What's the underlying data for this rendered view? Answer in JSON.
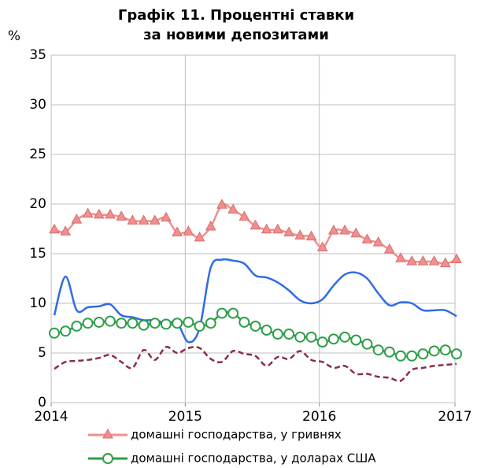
{
  "chart_data": {
    "type": "line",
    "title": [
      "Графік 11. Процентні ставки",
      "за новими депозитами"
    ],
    "y_label": "%",
    "categories": [
      "2014",
      null,
      null,
      null,
      null,
      null,
      null,
      null,
      null,
      null,
      null,
      null,
      "2015",
      null,
      null,
      null,
      null,
      null,
      null,
      null,
      null,
      null,
      null,
      null,
      "2016",
      null,
      null,
      null,
      null,
      null,
      null,
      null,
      null,
      null,
      null,
      null,
      "2017"
    ],
    "ylim": [
      0,
      35
    ],
    "yticks": [
      0,
      5,
      10,
      15,
      20,
      25,
      30,
      35
    ],
    "grid": true,
    "series": [
      {
        "name": "домашні господарства, у гривнях",
        "color": "#f08f8f",
        "marker": "triangle",
        "values": [
          17.4,
          17.2,
          18.4,
          19.0,
          18.9,
          18.9,
          18.7,
          18.3,
          18.3,
          18.3,
          18.6,
          17.1,
          17.2,
          16.6,
          17.7,
          19.9,
          19.4,
          18.7,
          17.8,
          17.4,
          17.4,
          17.1,
          16.8,
          16.7,
          15.6,
          17.3,
          17.3,
          17.0,
          16.4,
          16.1,
          15.4,
          14.5,
          14.2,
          14.2,
          14.2,
          14.0,
          14.4
        ]
      },
      {
        "name": "домашні господарства, у доларах США",
        "color": "#2e9e48",
        "marker": "circle",
        "values": [
          7.0,
          7.2,
          7.7,
          8.0,
          8.1,
          8.2,
          8.0,
          8.0,
          7.8,
          8.0,
          7.9,
          8.0,
          8.1,
          7.7,
          8.0,
          9.0,
          9.0,
          8.1,
          7.7,
          7.3,
          6.9,
          6.9,
          6.6,
          6.6,
          6.1,
          6.4,
          6.6,
          6.3,
          5.9,
          5.3,
          5.1,
          4.7,
          4.7,
          4.9,
          5.2,
          5.3,
          4.9
        ]
      },
      {
        "color": "#2f6be8",
        "values": [
          8.8,
          12.7,
          9.3,
          9.6,
          9.7,
          9.9,
          8.8,
          8.6,
          8.3,
          8.3,
          8.0,
          8.0,
          6.1,
          7.5,
          13.6,
          14.4,
          14.3,
          14.0,
          12.8,
          12.6,
          12.1,
          11.3,
          10.3,
          10.0,
          10.4,
          11.8,
          12.9,
          13.1,
          12.5,
          11.0,
          9.8,
          10.1,
          10.0,
          9.3,
          9.3,
          9.3,
          8.7
        ]
      },
      {
        "color": "#8b2a52",
        "dashed": true,
        "values": [
          3.4,
          4.1,
          4.2,
          4.3,
          4.5,
          4.8,
          4.1,
          3.5,
          5.3,
          4.3,
          5.6,
          5.0,
          5.5,
          5.5,
          4.4,
          4.1,
          5.2,
          4.9,
          4.7,
          3.7,
          4.6,
          4.4,
          5.2,
          4.3,
          4.1,
          3.5,
          3.7,
          2.9,
          2.9,
          2.6,
          2.5,
          2.2,
          3.3,
          3.5,
          3.7,
          3.8,
          3.9
        ]
      }
    ]
  }
}
